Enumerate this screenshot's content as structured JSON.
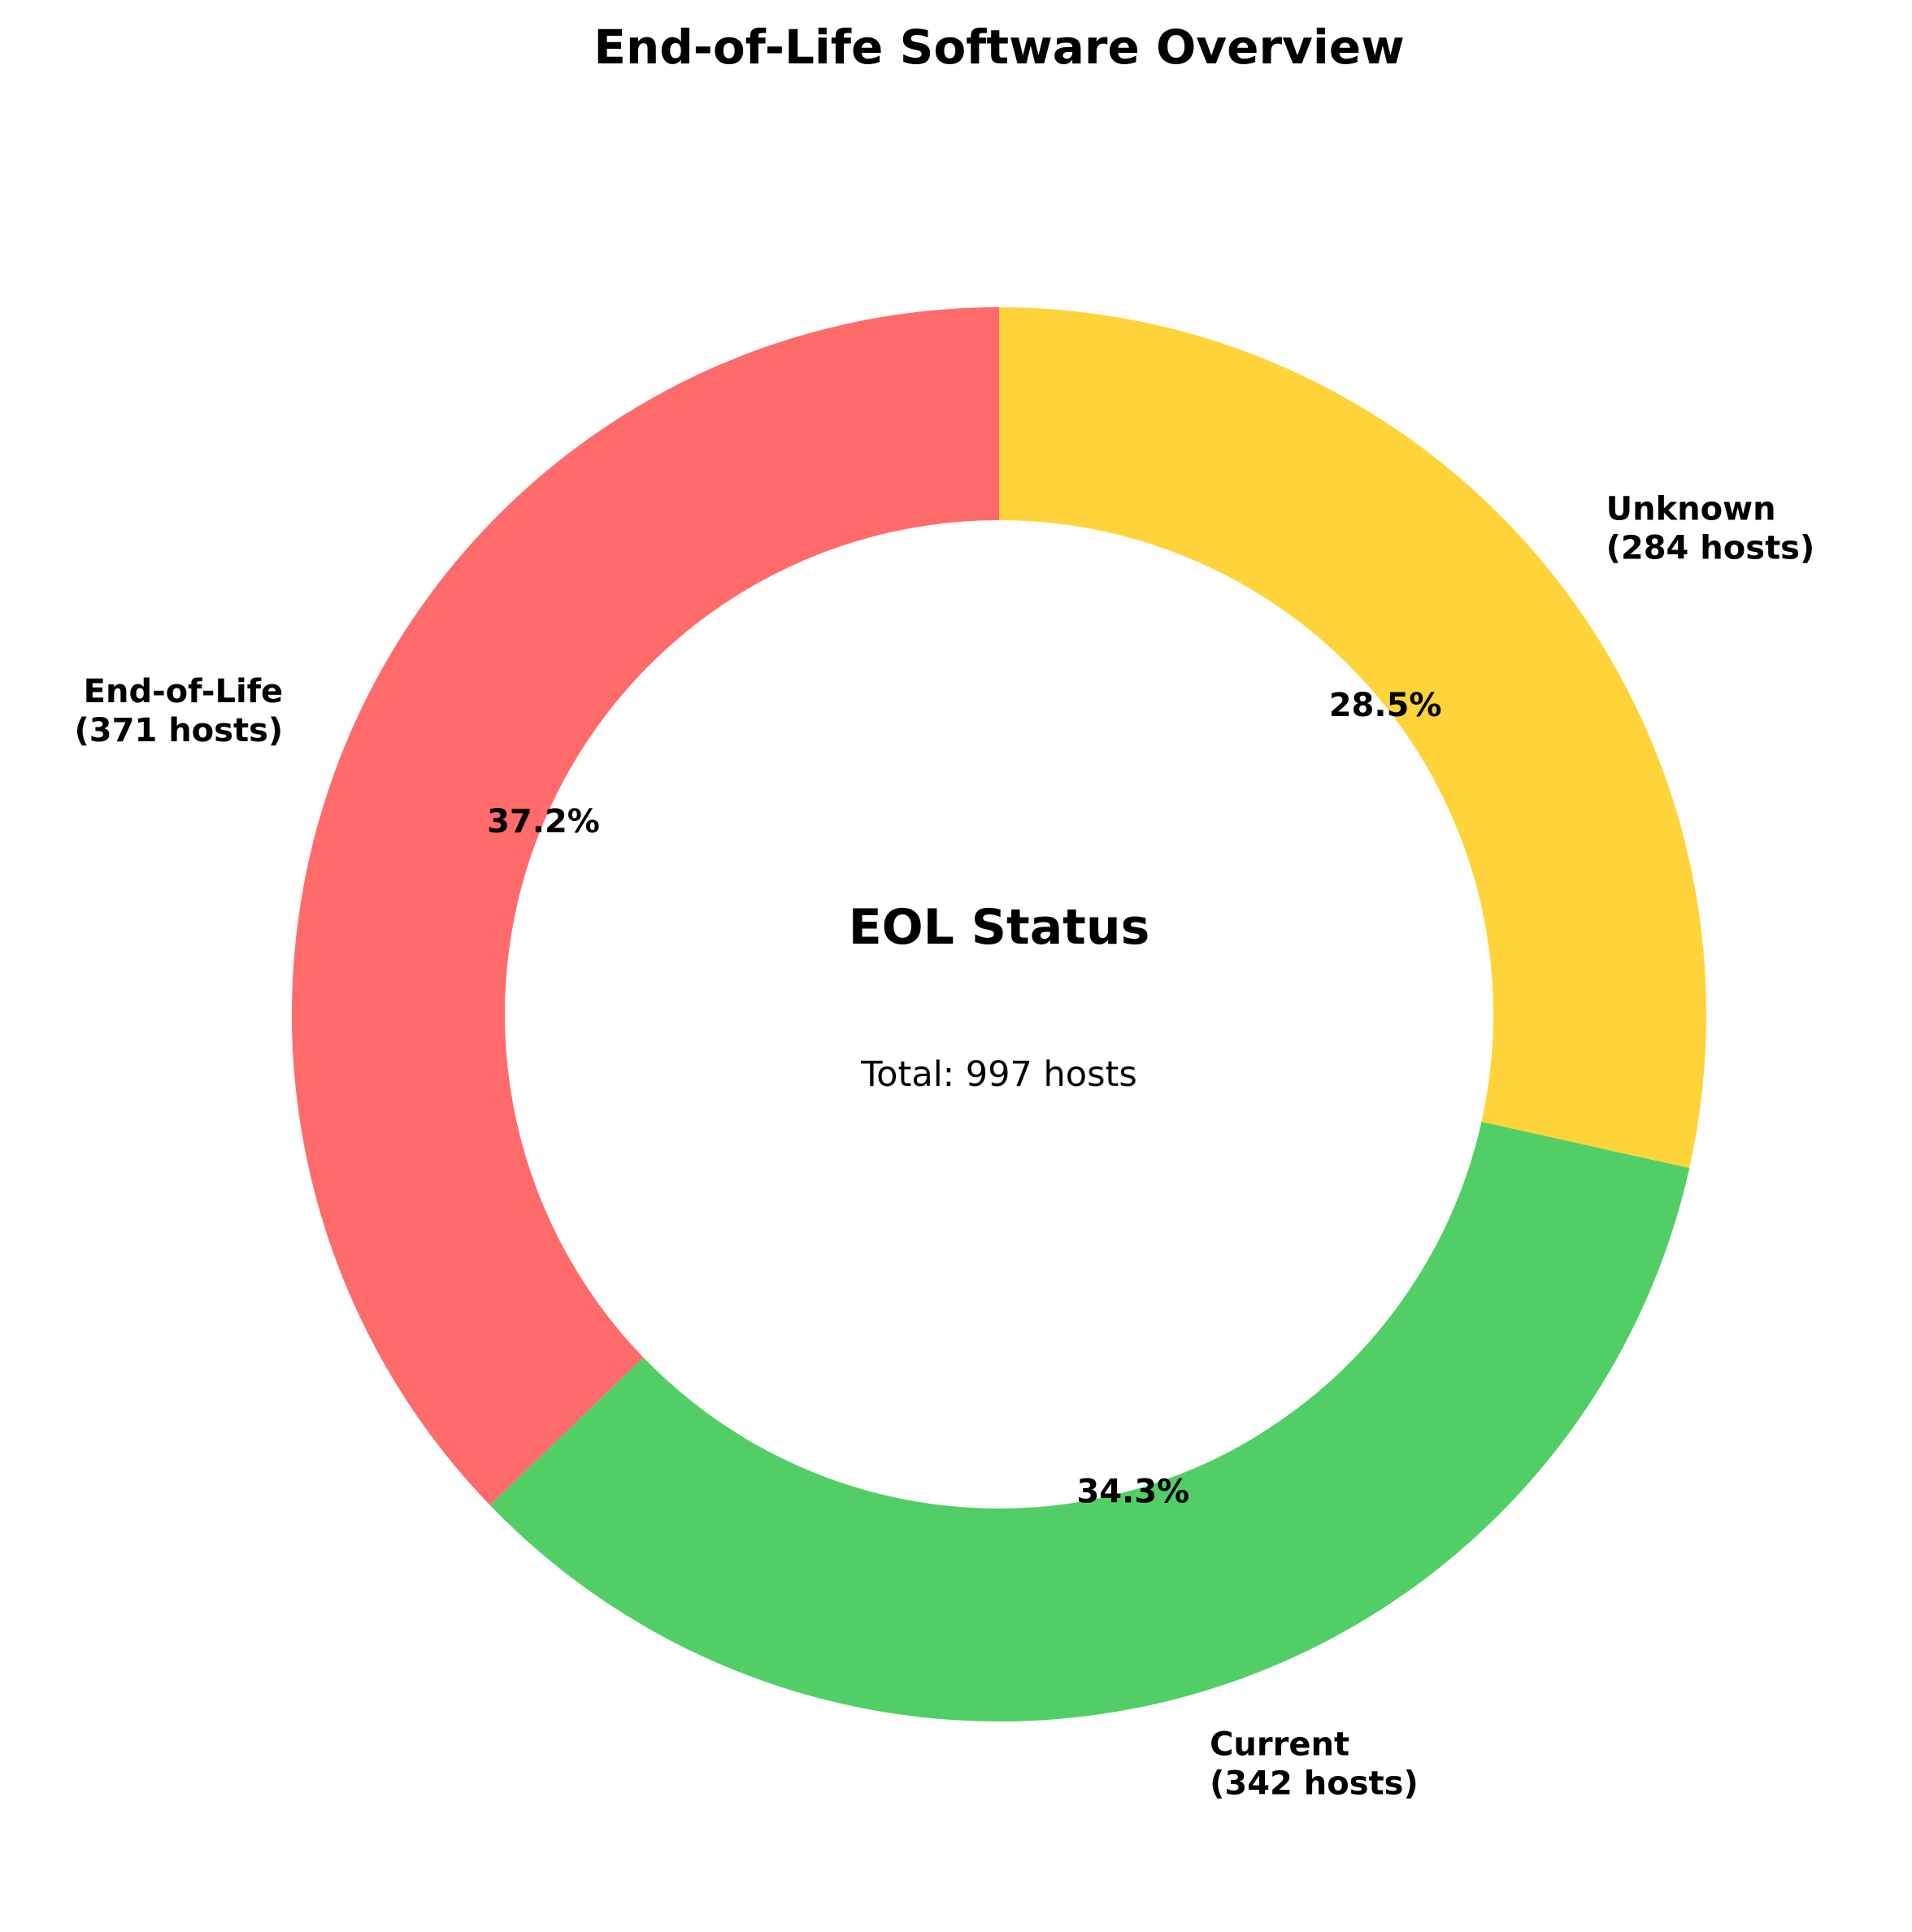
{
  "chart_data": {
    "type": "pie",
    "variant": "donut",
    "title": "End-of-Life Software Overview",
    "center_title": "EOL Status",
    "center_subtitle": "Total: 997 hosts",
    "start_angle": 90,
    "direction": "counterclockwise",
    "slices": [
      {
        "label": "End-of-Life",
        "count_label": "(371 hosts)",
        "value": 371,
        "percent_label": "37.2%",
        "color": "#ff6b6b"
      },
      {
        "label": "Current",
        "count_label": "(342 hosts)",
        "value": 342,
        "percent_label": "34.3%",
        "color": "#51cf66"
      },
      {
        "label": "Unknown",
        "count_label": "(284 hosts)",
        "value": 284,
        "percent_label": "28.5%",
        "color": "#ffd43b"
      }
    ],
    "legend": "none",
    "grid": false
  }
}
